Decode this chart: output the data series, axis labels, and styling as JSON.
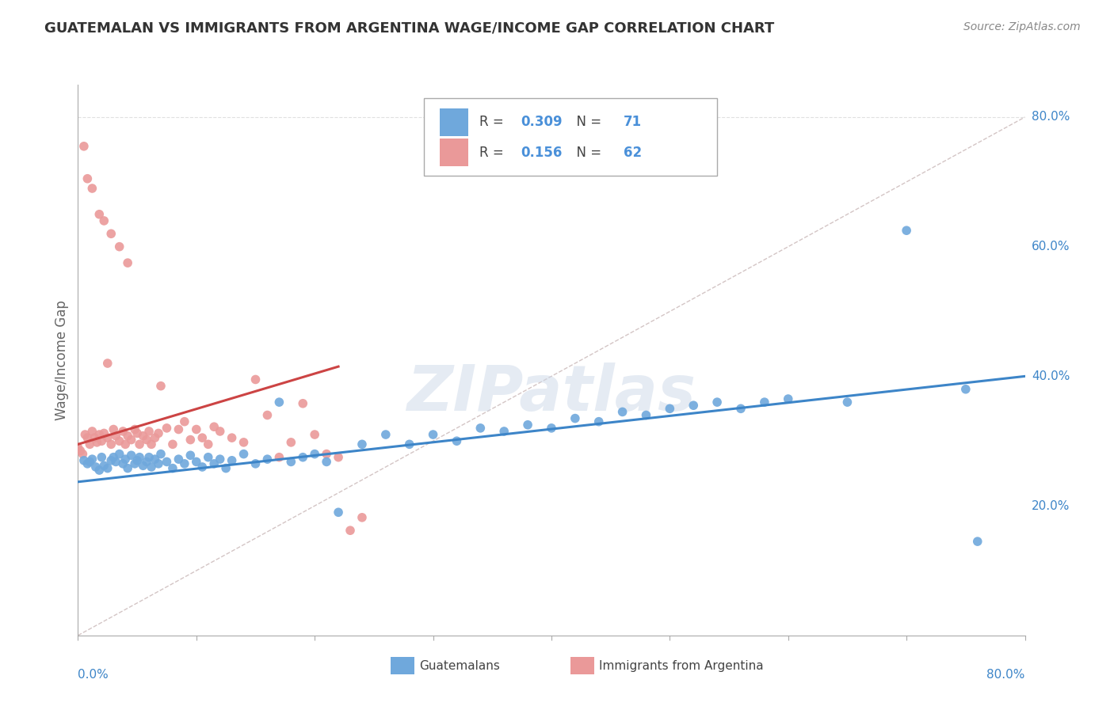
{
  "title": "GUATEMALAN VS IMMIGRANTS FROM ARGENTINA WAGE/INCOME GAP CORRELATION CHART",
  "source": "Source: ZipAtlas.com",
  "ylabel": "Wage/Income Gap",
  "yaxis_labels": [
    "20.0%",
    "40.0%",
    "60.0%",
    "80.0%"
  ],
  "yaxis_values": [
    0.2,
    0.4,
    0.6,
    0.8
  ],
  "xlim": [
    0.0,
    0.8
  ],
  "ylim": [
    0.0,
    0.85
  ],
  "blue_color": "#6fa8dc",
  "pink_color": "#ea9999",
  "blue_line_color": "#3d85c8",
  "pink_line_color": "#cc4444",
  "diag_color": "#ccbbbb",
  "legend_blue_R": "0.309",
  "legend_blue_N": "71",
  "legend_pink_R": "0.156",
  "legend_pink_N": "62",
  "legend_label_blue": "Guatemalans",
  "legend_label_pink": "Immigrants from Argentina",
  "watermark": "ZIPatlas",
  "blue_x": [
    0.005,
    0.008,
    0.01,
    0.012,
    0.015,
    0.018,
    0.02,
    0.022,
    0.025,
    0.028,
    0.03,
    0.032,
    0.035,
    0.038,
    0.04,
    0.042,
    0.045,
    0.048,
    0.05,
    0.052,
    0.055,
    0.058,
    0.06,
    0.062,
    0.065,
    0.068,
    0.07,
    0.075,
    0.08,
    0.085,
    0.09,
    0.095,
    0.1,
    0.105,
    0.11,
    0.115,
    0.12,
    0.125,
    0.13,
    0.14,
    0.15,
    0.16,
    0.17,
    0.18,
    0.19,
    0.2,
    0.21,
    0.22,
    0.24,
    0.26,
    0.28,
    0.3,
    0.32,
    0.34,
    0.36,
    0.38,
    0.4,
    0.42,
    0.44,
    0.46,
    0.48,
    0.5,
    0.52,
    0.54,
    0.56,
    0.58,
    0.6,
    0.65,
    0.7,
    0.75,
    0.76
  ],
  "blue_y": [
    0.27,
    0.265,
    0.268,
    0.272,
    0.26,
    0.255,
    0.275,
    0.262,
    0.258,
    0.27,
    0.275,
    0.268,
    0.28,
    0.265,
    0.272,
    0.258,
    0.278,
    0.265,
    0.27,
    0.275,
    0.262,
    0.268,
    0.275,
    0.26,
    0.272,
    0.265,
    0.28,
    0.268,
    0.258,
    0.272,
    0.265,
    0.278,
    0.268,
    0.26,
    0.275,
    0.265,
    0.272,
    0.258,
    0.27,
    0.28,
    0.265,
    0.272,
    0.36,
    0.268,
    0.275,
    0.28,
    0.268,
    0.19,
    0.295,
    0.31,
    0.295,
    0.31,
    0.3,
    0.32,
    0.315,
    0.325,
    0.32,
    0.335,
    0.33,
    0.345,
    0.34,
    0.35,
    0.355,
    0.36,
    0.35,
    0.36,
    0.365,
    0.36,
    0.625,
    0.38,
    0.145
  ],
  "pink_x": [
    0.0,
    0.002,
    0.004,
    0.006,
    0.008,
    0.01,
    0.012,
    0.014,
    0.016,
    0.018,
    0.02,
    0.022,
    0.025,
    0.028,
    0.03,
    0.032,
    0.035,
    0.038,
    0.04,
    0.042,
    0.045,
    0.048,
    0.05,
    0.052,
    0.055,
    0.058,
    0.06,
    0.062,
    0.065,
    0.068,
    0.07,
    0.075,
    0.08,
    0.085,
    0.09,
    0.095,
    0.1,
    0.105,
    0.11,
    0.115,
    0.12,
    0.13,
    0.14,
    0.15,
    0.16,
    0.17,
    0.18,
    0.19,
    0.2,
    0.21,
    0.22,
    0.23,
    0.24,
    0.025,
    0.005,
    0.008,
    0.012,
    0.018,
    0.022,
    0.028,
    0.035,
    0.042
  ],
  "pink_y": [
    0.29,
    0.285,
    0.28,
    0.31,
    0.305,
    0.295,
    0.315,
    0.305,
    0.298,
    0.31,
    0.3,
    0.312,
    0.305,
    0.295,
    0.318,
    0.308,
    0.3,
    0.315,
    0.295,
    0.308,
    0.302,
    0.318,
    0.312,
    0.295,
    0.308,
    0.302,
    0.315,
    0.295,
    0.305,
    0.312,
    0.385,
    0.32,
    0.295,
    0.318,
    0.33,
    0.302,
    0.318,
    0.305,
    0.295,
    0.322,
    0.315,
    0.305,
    0.298,
    0.395,
    0.34,
    0.275,
    0.298,
    0.358,
    0.31,
    0.28,
    0.275,
    0.162,
    0.182,
    0.42,
    0.755,
    0.705,
    0.69,
    0.65,
    0.64,
    0.62,
    0.6,
    0.575
  ],
  "blue_line_x": [
    0.0,
    0.8
  ],
  "blue_line_y": [
    0.237,
    0.4
  ],
  "pink_line_x": [
    0.0,
    0.22
  ],
  "pink_line_y": [
    0.295,
    0.415
  ]
}
